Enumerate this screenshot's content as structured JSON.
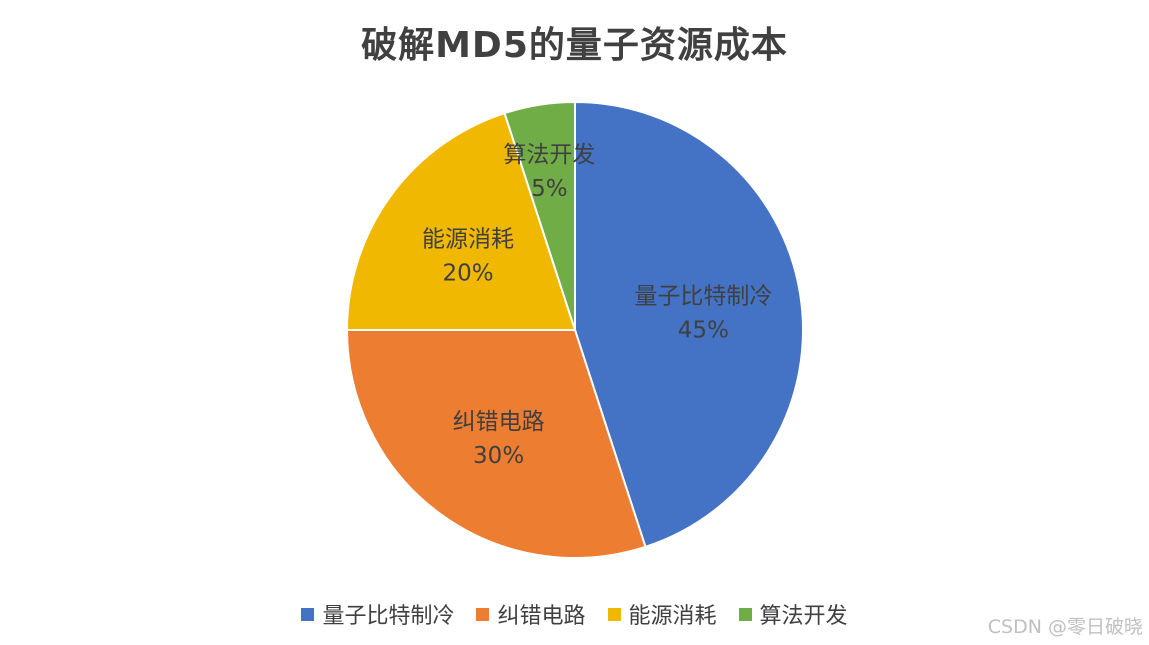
{
  "chart_data": {
    "type": "pie",
    "title": "破解MD5的量子资源成本",
    "categories": [
      "量子比特制冷",
      "纠错电路",
      "能源消耗",
      "算法开发"
    ],
    "values": [
      45,
      30,
      20,
      5
    ],
    "value_labels": [
      "45%",
      "30%",
      "20%",
      "5%"
    ],
    "colors": [
      "#4472C4",
      "#ED7D31",
      "#F0B800",
      "#70AD47"
    ],
    "legend_position": "bottom",
    "start_angle": "top, clockwise"
  },
  "watermark": "CSDN @零日破晓"
}
